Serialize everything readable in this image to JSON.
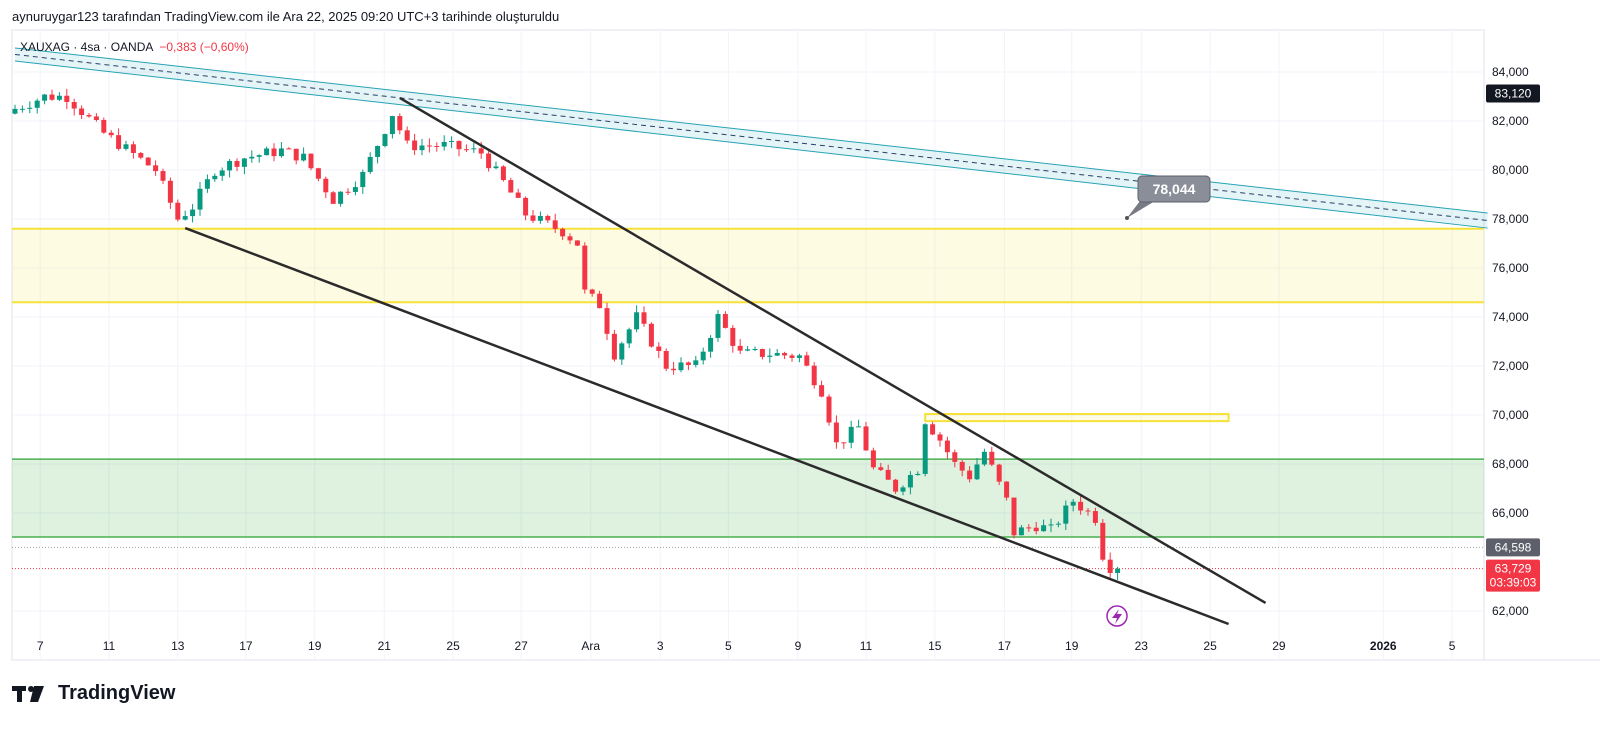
{
  "credit": "aynuruygar123 tarafından TradingView.com ile Ara 22, 2025 09:20 UTC+3 tarihinde oluşturuldu",
  "legend": {
    "symbol": "XAUXAG · 4sa · OANDA",
    "change": "−0,383 (−0,60%)"
  },
  "logo": "TradingView",
  "colors": {
    "up": "#089981",
    "down": "#f23645",
    "channel": "#26a3b5",
    "yellow": "#f5e13a",
    "green": "#4caf50"
  },
  "chart_data": {
    "type": "candlestick",
    "title": "XAUXAG 4h OANDA",
    "ylim": [
      61000,
      85500
    ],
    "y_ticks": [
      {
        "value": 84000,
        "label": "84,000"
      },
      {
        "value": 82000,
        "label": "82,000"
      },
      {
        "value": 80000,
        "label": "80,000"
      },
      {
        "value": 78000,
        "label": "78,000"
      },
      {
        "value": 76000,
        "label": "76,000"
      },
      {
        "value": 74000,
        "label": "74,000"
      },
      {
        "value": 72000,
        "label": "72,000"
      },
      {
        "value": 70000,
        "label": "70,000"
      },
      {
        "value": 68000,
        "label": "68,000"
      },
      {
        "value": 66000,
        "label": "66,000"
      },
      {
        "value": 62000,
        "label": "62,000"
      }
    ],
    "x_ticks": [
      {
        "bar": 3.4,
        "label": "7"
      },
      {
        "bar": 12.7,
        "label": "11"
      },
      {
        "bar": 22,
        "label": "13"
      },
      {
        "bar": 31.2,
        "label": "17"
      },
      {
        "bar": 40.5,
        "label": "19"
      },
      {
        "bar": 49.9,
        "label": "21"
      },
      {
        "bar": 59.2,
        "label": "25"
      },
      {
        "bar": 68.4,
        "label": "27"
      },
      {
        "bar": 77.8,
        "label": "Ara"
      },
      {
        "bar": 87.2,
        "label": "3"
      },
      {
        "bar": 96.4,
        "label": "5"
      },
      {
        "bar": 105.8,
        "label": "9"
      },
      {
        "bar": 115,
        "label": "11"
      },
      {
        "bar": 124.3,
        "label": "15"
      },
      {
        "bar": 133.7,
        "label": "17"
      },
      {
        "bar": 142.8,
        "label": "19"
      },
      {
        "bar": 152.2,
        "label": "23"
      },
      {
        "bar": 161.5,
        "label": "25"
      },
      {
        "bar": 170.8,
        "label": "29"
      },
      {
        "bar": 184.9,
        "label": "2026"
      },
      {
        "bar": 194.2,
        "label": "5"
      }
    ],
    "close_path": [
      [
        0,
        82500
      ],
      [
        4,
        83000
      ],
      [
        7,
        83000
      ],
      [
        12,
        81500
      ],
      [
        19,
        80000
      ],
      [
        22,
        78000
      ],
      [
        24,
        78500
      ],
      [
        27,
        80000
      ],
      [
        31,
        80500
      ],
      [
        36,
        80800
      ],
      [
        39,
        80500
      ],
      [
        43,
        78800
      ],
      [
        47,
        79800
      ],
      [
        51,
        82300
      ],
      [
        53,
        81000
      ],
      [
        58,
        81000
      ],
      [
        63,
        80700
      ],
      [
        66,
        79500
      ],
      [
        69,
        78200
      ],
      [
        74,
        77500
      ],
      [
        76,
        77000
      ],
      [
        77,
        75000
      ],
      [
        79,
        74500
      ],
      [
        81,
        72500
      ],
      [
        84,
        74000
      ],
      [
        88,
        72000
      ],
      [
        92,
        72000
      ],
      [
        95,
        74000
      ],
      [
        98,
        72500
      ],
      [
        102,
        72500
      ],
      [
        106,
        72400
      ],
      [
        109,
        71000
      ],
      [
        111,
        68800
      ],
      [
        114,
        69500
      ],
      [
        116,
        67800
      ],
      [
        119,
        67000
      ],
      [
        122,
        67800
      ],
      [
        123,
        69800
      ],
      [
        125,
        69000
      ],
      [
        127,
        68000
      ],
      [
        129,
        67500
      ],
      [
        131,
        68500
      ],
      [
        134,
        66500
      ],
      [
        135,
        65200
      ],
      [
        138,
        65500
      ],
      [
        140,
        65300
      ],
      [
        143,
        66500
      ],
      [
        146,
        65800
      ],
      [
        147,
        64300
      ],
      [
        148,
        63800
      ],
      [
        149,
        63729
      ]
    ],
    "drawings": {
      "channel_upper": [
        [
          0,
          84980
        ],
        [
          199,
          78245
        ]
      ],
      "channel_lower": [
        [
          0,
          84450
        ],
        [
          199,
          77630
        ]
      ],
      "wedge_upper": [
        [
          52,
          82940
        ],
        [
          169,
          62330
        ]
      ],
      "wedge_lower": [
        [
          23,
          77630
        ],
        [
          164,
          61470
        ]
      ],
      "yellow_zone": [
        77600,
        74600
      ],
      "green_zone": [
        68200,
        65020
      ],
      "yellow_box": {
        "bars": [
          123,
          164
        ],
        "prices": [
          70040,
          69750
        ]
      }
    },
    "price_labels": {
      "high": "83,120",
      "prev_close": "64,598",
      "last": "63,729",
      "countdown": "03:39:03",
      "callout": "78,044"
    },
    "last_price": 63729,
    "prev_close_price": 64598,
    "high_price": 83120,
    "callout_price": 78044
  }
}
